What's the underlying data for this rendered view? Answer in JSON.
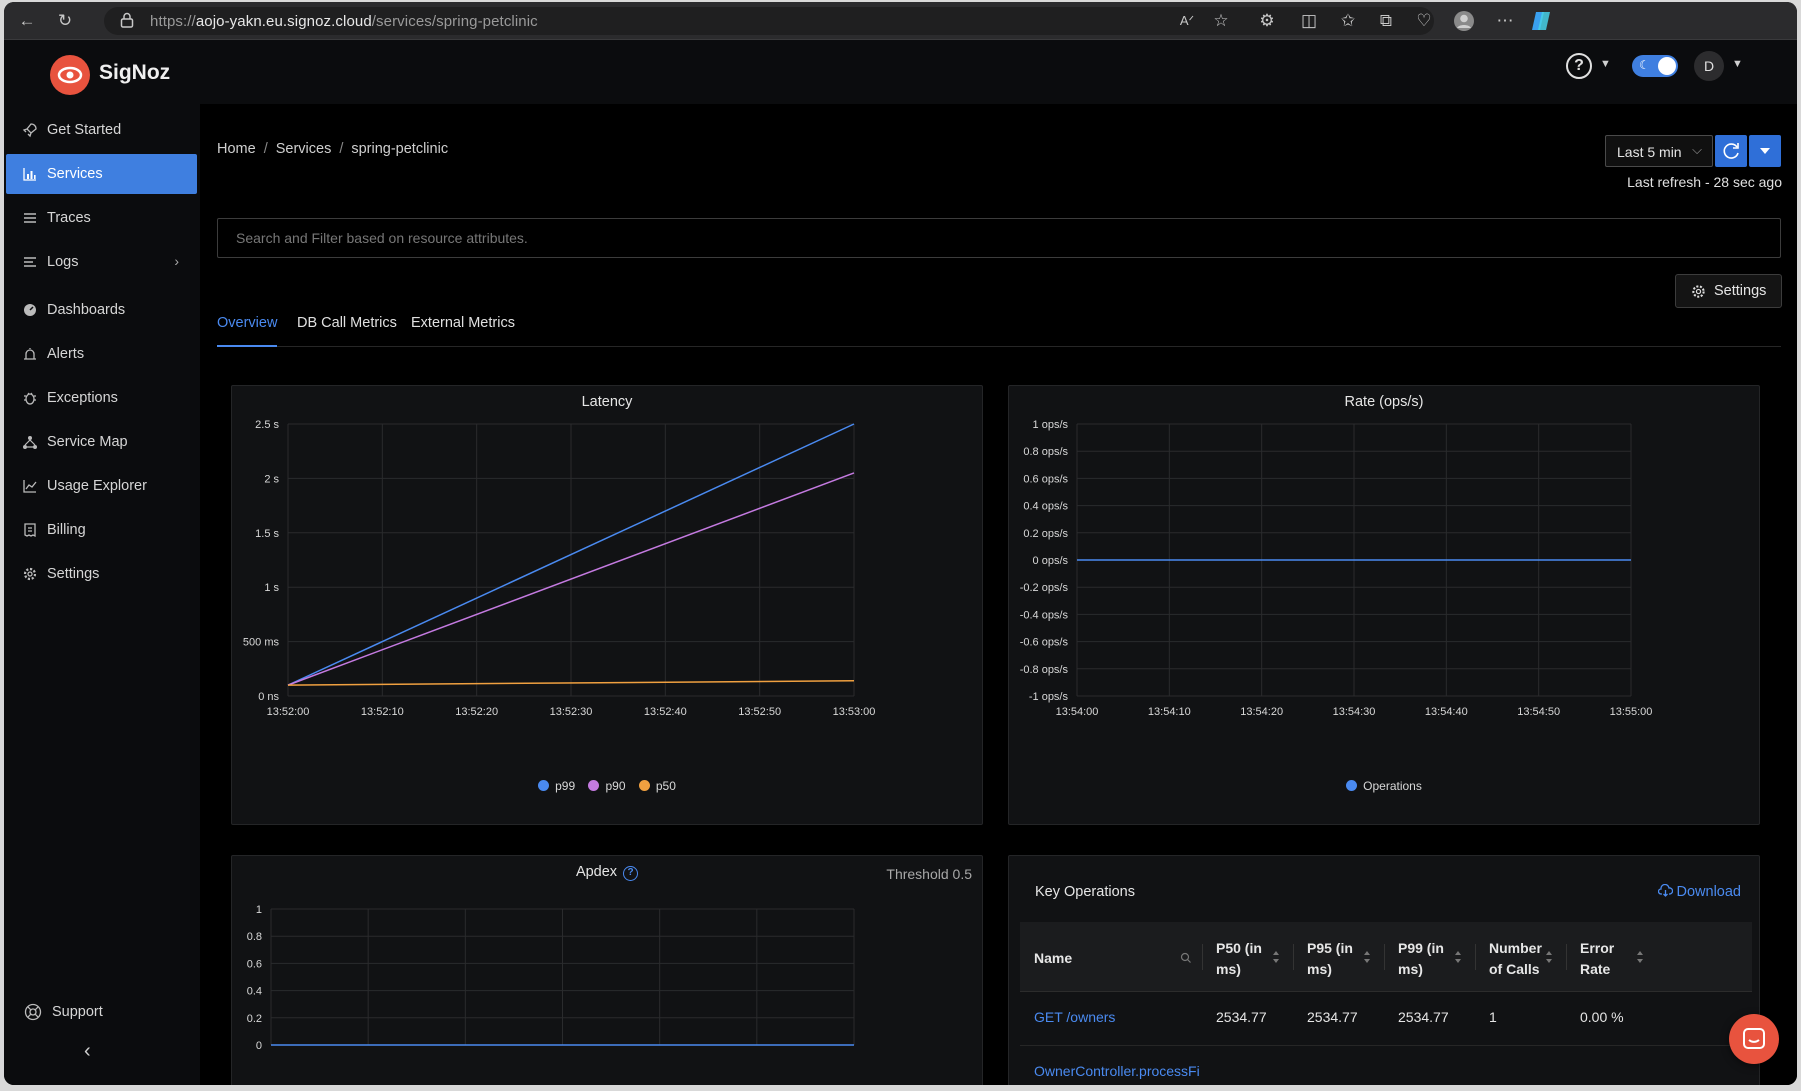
{
  "browser": {
    "url_prefix": "https://",
    "url_host": "aojo-yakn.eu.signoz.cloud",
    "url_path": "/services/spring-petclinic"
  },
  "app": {
    "name": "SigNoz",
    "user_initial": "D"
  },
  "sidebar": {
    "items": [
      {
        "label": "Get Started",
        "icon": "rocket-icon"
      },
      {
        "label": "Services",
        "icon": "bar-chart-icon",
        "active": true
      },
      {
        "label": "Traces",
        "icon": "list-icon"
      },
      {
        "label": "Logs",
        "icon": "logs-icon"
      },
      {
        "label": "Dashboards",
        "icon": "dashboard-icon"
      },
      {
        "label": "Alerts",
        "icon": "alarm-icon"
      },
      {
        "label": "Exceptions",
        "icon": "bug-icon"
      },
      {
        "label": "Service Map",
        "icon": "network-icon"
      },
      {
        "label": "Usage Explorer",
        "icon": "line-chart-icon"
      },
      {
        "label": "Billing",
        "icon": "receipt-icon"
      },
      {
        "label": "Settings",
        "icon": "gear-icon"
      }
    ],
    "support": "Support"
  },
  "breadcrumb": [
    "Home",
    "Services",
    "spring-petclinic"
  ],
  "toolbar": {
    "time_range": "Last 5 min",
    "last_refresh": "Last refresh - 28 sec ago",
    "settings_label": "Settings"
  },
  "search": {
    "placeholder": "Search and Filter based on resource attributes."
  },
  "tabs": [
    "Overview",
    "DB Call Metrics",
    "External Metrics"
  ],
  "colors": {
    "accent": "#3f7fe0",
    "p99": "#4a8af0",
    "p90": "#c47ae0",
    "p50": "#f0a040",
    "brand": "#e8533e"
  },
  "chart_data": [
    {
      "type": "line",
      "title": "Latency",
      "x": [
        "13:52:00",
        "13:53:00"
      ],
      "x_ticks": [
        "13:52:00",
        "13:52:10",
        "13:52:20",
        "13:52:30",
        "13:52:40",
        "13:52:50",
        "13:53:00"
      ],
      "y_ticks": [
        "0 ns",
        "500 ms",
        "1 s",
        "1.5 s",
        "2 s",
        "2.5 s"
      ],
      "ylim": [
        0,
        2.5
      ],
      "y_unit": "s",
      "series": [
        {
          "name": "p99",
          "values": [
            0.1,
            2.5
          ]
        },
        {
          "name": "p90",
          "values": [
            0.1,
            2.05
          ]
        },
        {
          "name": "p50",
          "values": [
            0.1,
            0.14
          ]
        }
      ],
      "legend": "bottom",
      "grid": true
    },
    {
      "type": "line",
      "title": "Rate (ops/s)",
      "x_ticks": [
        "13:54:00",
        "13:54:10",
        "13:54:20",
        "13:54:30",
        "13:54:40",
        "13:54:50",
        "13:55:00"
      ],
      "y_ticks": [
        "-1 ops/s",
        "-0.8 ops/s",
        "-0.6 ops/s",
        "-0.4 ops/s",
        "-0.2 ops/s",
        "0 ops/s",
        "0.2 ops/s",
        "0.4 ops/s",
        "0.6 ops/s",
        "0.8 ops/s",
        "1 ops/s"
      ],
      "ylim": [
        -1,
        1
      ],
      "series": [
        {
          "name": "Operations",
          "values": [
            0,
            0
          ]
        }
      ],
      "legend": "bottom",
      "grid": true
    },
    {
      "type": "line",
      "title": "Apdex",
      "threshold": "Threshold 0.5",
      "y_ticks": [
        "0",
        "0.2",
        "0.4",
        "0.6",
        "0.8",
        "1"
      ],
      "ylim": [
        0,
        1
      ],
      "series": [
        {
          "values": [
            0,
            0
          ]
        }
      ],
      "grid": true
    }
  ],
  "key_operations": {
    "title": "Key Operations",
    "download": "Download",
    "columns": [
      {
        "l1": "Name",
        "l2": ""
      },
      {
        "l1": "P50 (in",
        "l2": "ms)"
      },
      {
        "l1": "P95 (in",
        "l2": "ms)"
      },
      {
        "l1": "P99 (in",
        "l2": "ms)"
      },
      {
        "l1": "Number",
        "l2": "of Calls"
      },
      {
        "l1": "Error",
        "l2": "Rate"
      }
    ],
    "rows": [
      {
        "name": "GET /owners",
        "p50": "2534.77",
        "p95": "2534.77",
        "p99": "2534.77",
        "calls": "1",
        "error_rate": "0.00 %"
      },
      {
        "name": "OwnerController.processFi",
        "p50": "",
        "p95": "",
        "p99": "",
        "calls": "",
        "error_rate": ""
      }
    ]
  }
}
